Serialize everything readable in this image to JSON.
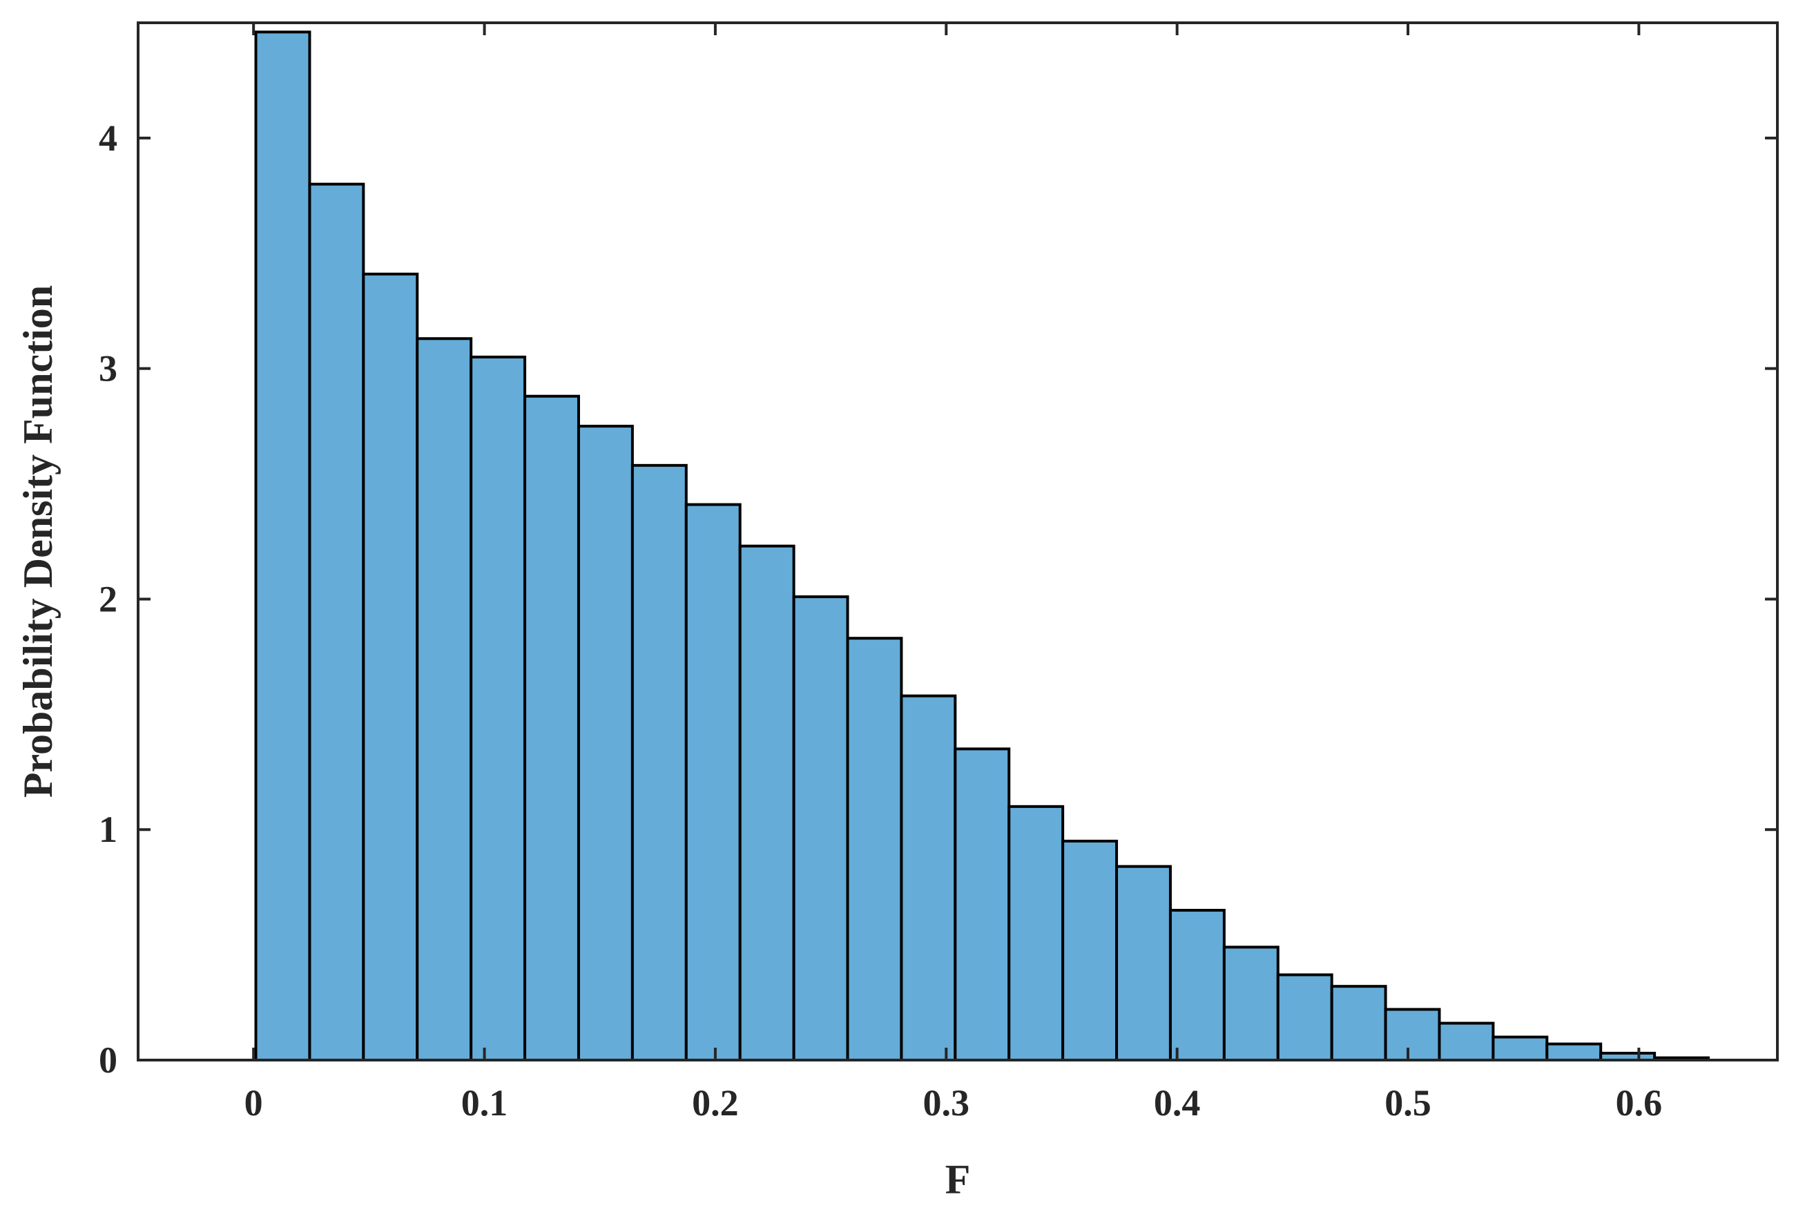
{
  "chart_data": {
    "type": "bar",
    "subtype": "histogram",
    "title": "",
    "xlabel": "F",
    "ylabel": "Probability Density Function",
    "xlim": [
      -0.05,
      0.66
    ],
    "ylim": [
      0,
      4.5
    ],
    "xticks": [
      0,
      0.1,
      0.2,
      0.3,
      0.4,
      0.5,
      0.6
    ],
    "xtick_labels": [
      "0",
      "0.1",
      "0.2",
      "0.3",
      "0.4",
      "0.5",
      "0.6"
    ],
    "yticks": [
      0,
      1,
      2,
      3,
      4
    ],
    "ytick_labels": [
      "0",
      "1",
      "2",
      "3",
      "4"
    ],
    "bin_width": 0.0233,
    "bin_start": 0.001,
    "values": [
      4.46,
      3.8,
      3.41,
      3.13,
      3.05,
      2.88,
      2.75,
      2.58,
      2.41,
      2.23,
      2.01,
      1.83,
      1.58,
      1.35,
      1.1,
      0.95,
      0.84,
      0.65,
      0.49,
      0.37,
      0.32,
      0.22,
      0.16,
      0.1,
      0.07,
      0.03,
      0.01
    ],
    "bar_color": "#65acd8",
    "edge_color": "#000000",
    "grid": false,
    "legend": "none"
  }
}
